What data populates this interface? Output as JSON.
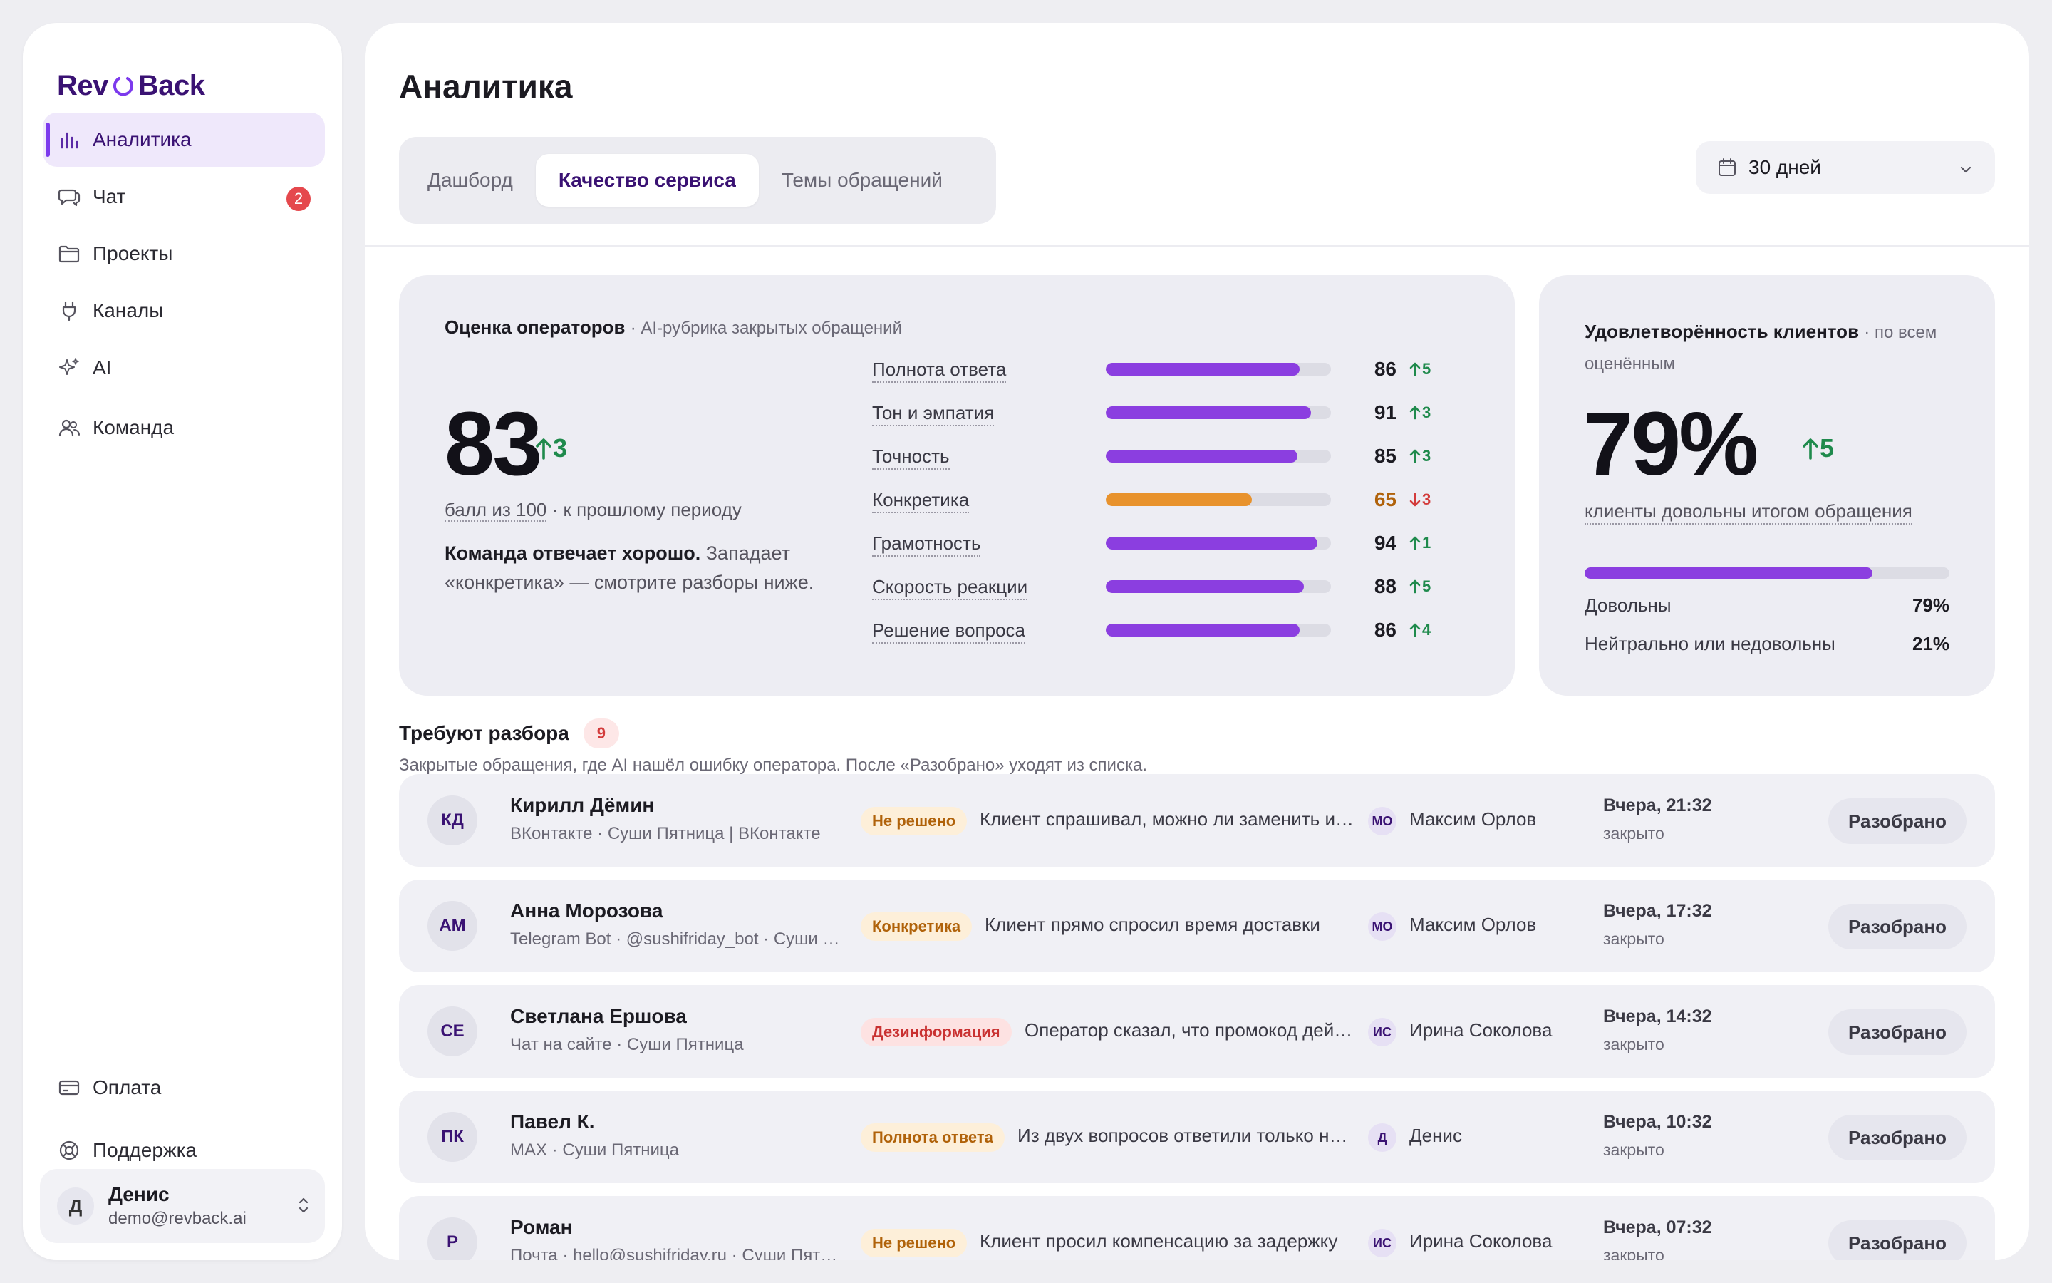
{
  "app": {
    "logo_left": "Rev",
    "logo_right": "Back",
    "accent": "#7c3aed"
  },
  "sidebar": {
    "items": [
      {
        "label": "Аналитика",
        "icon": "bar-chart-icon",
        "active": true
      },
      {
        "label": "Чат",
        "icon": "chat-icon",
        "badge": "2"
      },
      {
        "label": "Проекты",
        "icon": "folder-icon"
      },
      {
        "label": "Каналы",
        "icon": "plug-icon"
      },
      {
        "label": "AI",
        "icon": "sparkle-icon"
      },
      {
        "label": "Команда",
        "icon": "team-icon"
      }
    ],
    "bottom": [
      {
        "label": "Оплата",
        "icon": "credit-card-icon"
      },
      {
        "label": "Поддержка",
        "icon": "lifebuoy-icon"
      }
    ],
    "user": {
      "initial": "Д",
      "name": "Денис",
      "email": "demo@revback.ai"
    }
  },
  "header": {
    "title": "Аналитика",
    "tabs": [
      {
        "label": "Дашборд"
      },
      {
        "label": "Качество сервиса",
        "active": true
      },
      {
        "label": "Темы обращений"
      }
    ],
    "period": "30 дней"
  },
  "operators": {
    "title": "Оценка операторов",
    "subtitle": "· AI-рубрика закрытых обращений",
    "score": "83",
    "delta": "3",
    "note_link": "балл из 100",
    "note_rest": " · к прошлому периоду",
    "summary_bold": "Команда отвечает хорошо.",
    "summary_rest": " Западает «конкретика» — смотрите разборы ниже.",
    "metrics": [
      {
        "label": "Полнота ответа",
        "value": 86,
        "value_text": "86",
        "delta": "5",
        "dir": "up",
        "color": "#8b3ee0"
      },
      {
        "label": "Тон и эмпатия",
        "value": 91,
        "value_text": "91",
        "delta": "3",
        "dir": "up",
        "color": "#8b3ee0"
      },
      {
        "label": "Точность",
        "value": 85,
        "value_text": "85",
        "delta": "3",
        "dir": "up",
        "color": "#8b3ee0"
      },
      {
        "label": "Конкретика",
        "value": 65,
        "value_text": "65",
        "delta": "3",
        "dir": "down",
        "color": "#e8922c"
      },
      {
        "label": "Грамотность",
        "value": 94,
        "value_text": "94",
        "delta": "1",
        "dir": "up",
        "color": "#8b3ee0"
      },
      {
        "label": "Скорость реакции",
        "value": 88,
        "value_text": "88",
        "delta": "5",
        "dir": "up",
        "color": "#8b3ee0"
      },
      {
        "label": "Решение вопроса",
        "value": 86,
        "value_text": "86",
        "delta": "4",
        "dir": "up",
        "color": "#8b3ee0"
      }
    ]
  },
  "satisfaction": {
    "title": "Удовлетворённость клиентов",
    "subtitle": "· по всем оценённым",
    "percent": "79%",
    "delta": "5",
    "caption": "клиенты довольны итогом обращения",
    "fill_fraction": 0.79,
    "rows": [
      {
        "label": "Довольны",
        "value": "79%"
      },
      {
        "label": "Нейтрально или недовольны",
        "value": "21%"
      }
    ]
  },
  "review": {
    "title": "Требуют разбора",
    "count": "9",
    "description": "Закрытые обращения, где AI нашёл ошибку оператора. После «Разобрано» уходят из списка.",
    "button_label": "Разобрано",
    "rows": [
      {
        "initials": "КД",
        "name": "Кирилл Дёмин",
        "source": "ВКонтакте · Суши Пятница | ВКонтакте",
        "tag": "Не решено",
        "tag_color": "orange",
        "text": "Клиент спрашивал, можно ли заменить ингредиент",
        "op_initials": "МО",
        "operator": "Максим Орлов",
        "time": "Вчера, 21:32",
        "status": "закрыто"
      },
      {
        "initials": "АМ",
        "name": "Анна Морозова",
        "source": "Telegram Bot · @sushifriday_bot · Суши Пятница",
        "tag": "Конкретика",
        "tag_color": "orange",
        "text": "Клиент прямо спросил время доставки",
        "op_initials": "МО",
        "operator": "Максим Орлов",
        "time": "Вчера, 17:32",
        "status": "закрыто"
      },
      {
        "initials": "СЕ",
        "name": "Светлана Ершова",
        "source": "Чат на сайте · Суши Пятница",
        "tag": "Дезинформация",
        "tag_color": "red",
        "text": "Оператор сказал, что промокод действует",
        "op_initials": "ИС",
        "operator": "Ирина Соколова",
        "time": "Вчера, 14:32",
        "status": "закрыто"
      },
      {
        "initials": "ПК",
        "name": "Павел К.",
        "source": "MAX · Суши Пятница",
        "tag": "Полнота ответа",
        "tag_color": "orange",
        "text": "Из двух вопросов ответили только на один",
        "op_initials": "Д",
        "operator": "Денис",
        "time": "Вчера, 10:32",
        "status": "закрыто"
      },
      {
        "initials": "Р",
        "name": "Роман",
        "source": "Почта · hello@sushifriday.ru · Суши Пятница",
        "tag": "Не решено",
        "tag_color": "orange",
        "text": "Клиент просил компенсацию за задержку",
        "op_initials": "ИС",
        "operator": "Ирина Соколова",
        "time": "Вчера, 07:32",
        "status": "закрыто"
      }
    ]
  }
}
